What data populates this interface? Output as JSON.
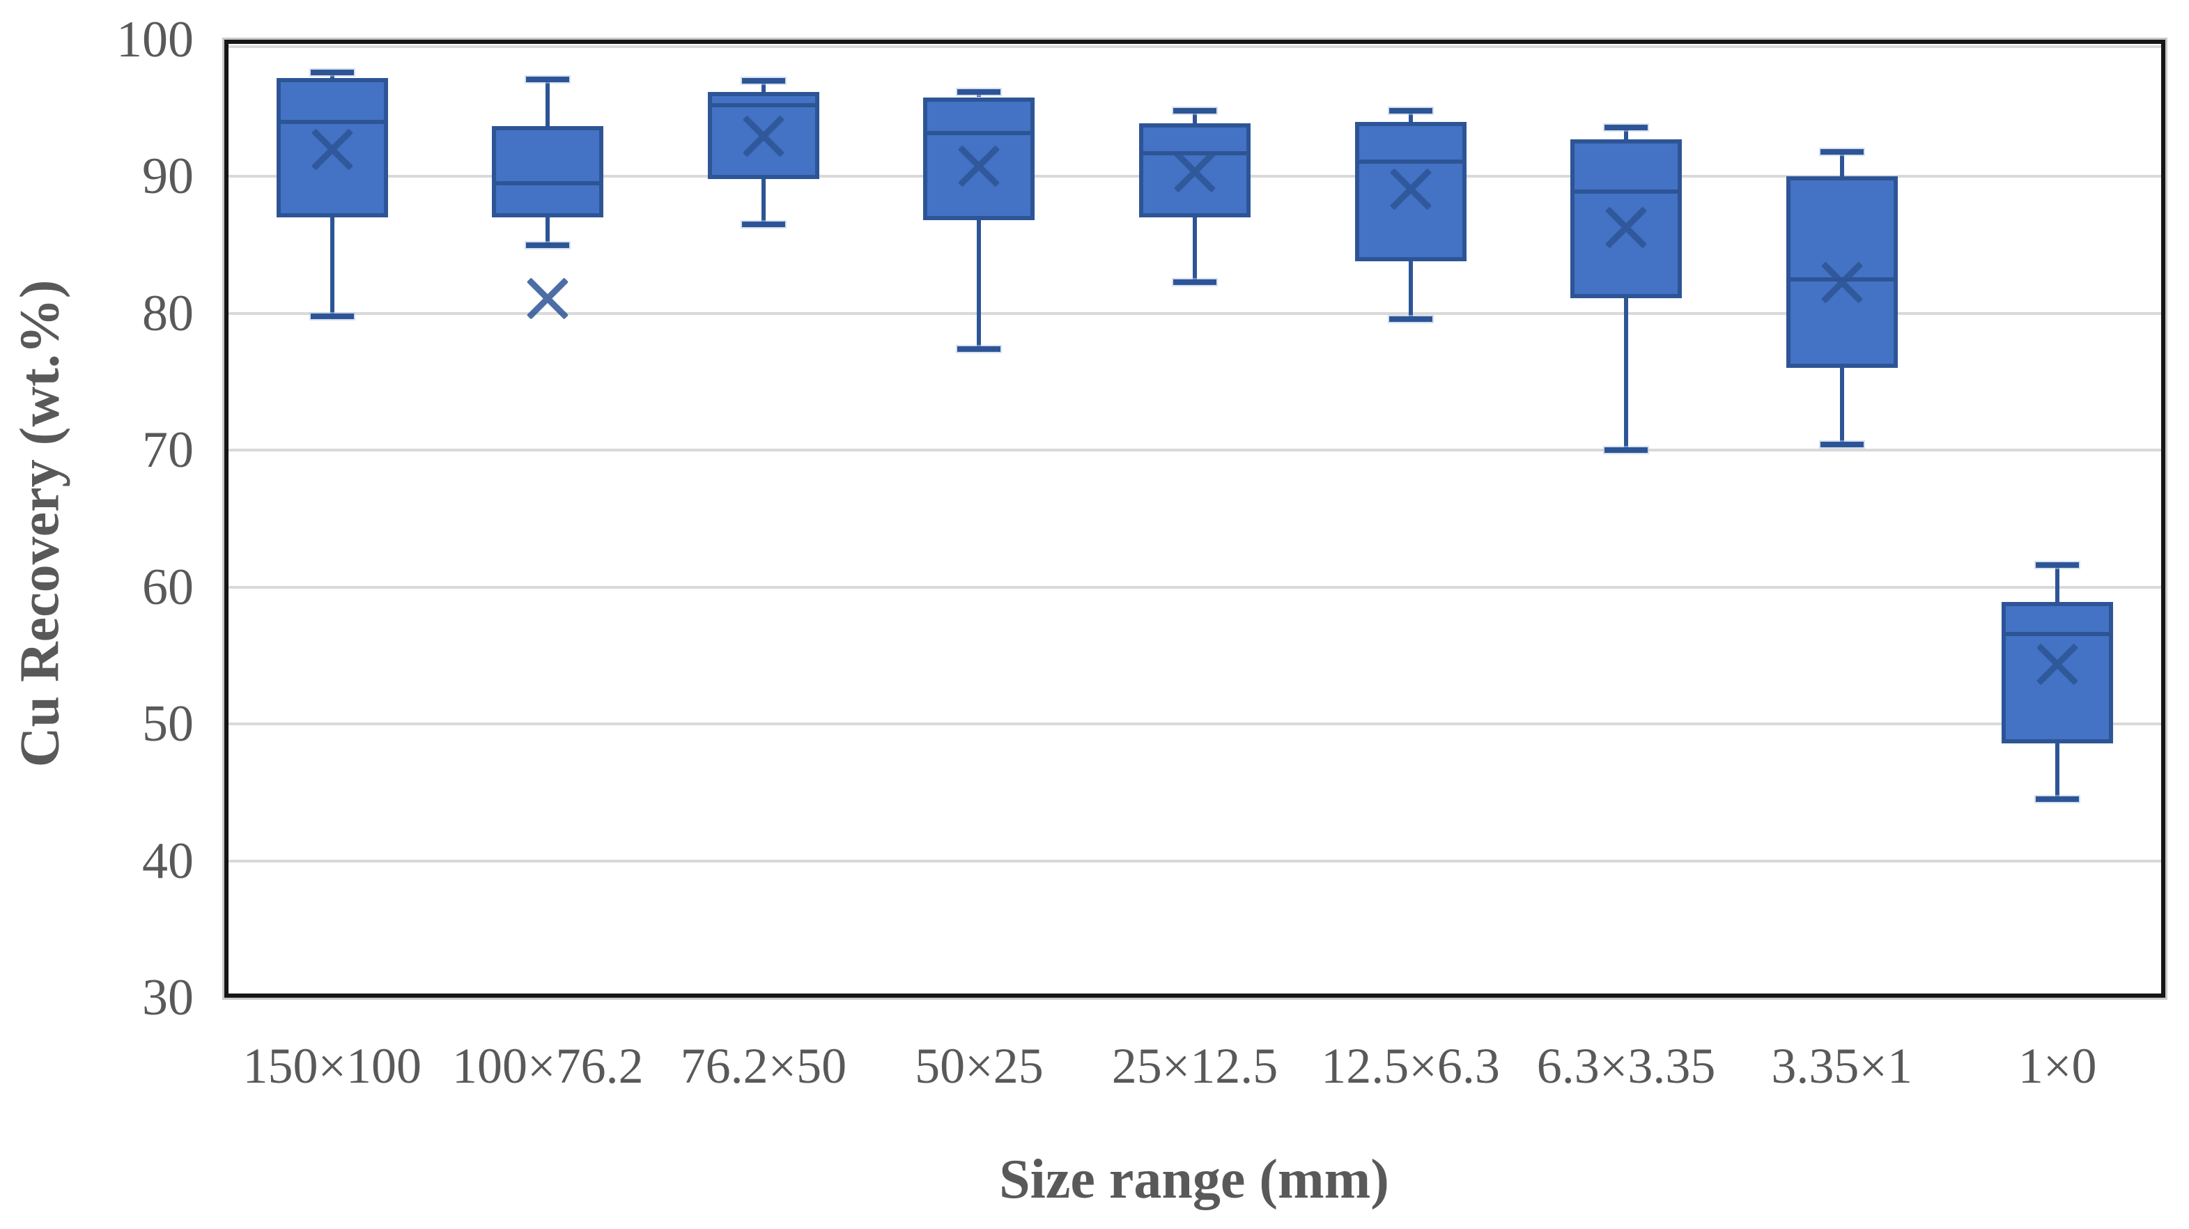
{
  "chart_data": {
    "type": "boxplot",
    "title": "",
    "xlabel": "Size range (mm)",
    "ylabel": "Cu Recovery (wt.%)",
    "ylim": [
      30,
      100
    ],
    "y_ticks": [
      100,
      90,
      80,
      70,
      60,
      50,
      40,
      30
    ],
    "grid": "horizontal gridlines every 10 units, light gray, plot area framed in black",
    "legend": "none",
    "categories": [
      "150×100",
      "100×76.2",
      "76.2×50",
      "50×25",
      "25×12.5",
      "12.5×6.3",
      "6.3×3.35",
      "3.35×1",
      "1×0"
    ],
    "series": [
      {
        "label": "150×100",
        "whisker_low": 79.8,
        "q1": 87.0,
        "median": 94.0,
        "q3": 97.2,
        "whisker_high": 97.6,
        "mean": 92.0
      },
      {
        "label": "100×76.2",
        "whisker_low": 85.0,
        "q1": 87.0,
        "median": 89.5,
        "q3": 93.7,
        "whisker_high": 97.1,
        "mean": 81.1
      },
      {
        "label": "76.2×50",
        "whisker_low": 86.5,
        "q1": 89.8,
        "median": 95.2,
        "q3": 96.2,
        "whisker_high": 97.0,
        "mean": 93.0
      },
      {
        "label": "50×25",
        "whisker_low": 77.4,
        "q1": 86.8,
        "median": 93.2,
        "q3": 95.8,
        "whisker_high": 96.2,
        "mean": 90.8
      },
      {
        "label": "25×12.5",
        "whisker_low": 82.3,
        "q1": 87.0,
        "median": 91.7,
        "q3": 93.9,
        "whisker_high": 94.8,
        "mean": 90.4
      },
      {
        "label": "12.5×6.3",
        "whisker_low": 79.6,
        "q1": 83.8,
        "median": 91.1,
        "q3": 94.0,
        "whisker_high": 94.8,
        "mean": 89.1
      },
      {
        "label": "6.3×3.35",
        "whisker_low": 70.0,
        "q1": 81.1,
        "median": 88.9,
        "q3": 92.7,
        "whisker_high": 93.6,
        "mean": 86.3
      },
      {
        "label": "3.35×1",
        "whisker_low": 70.4,
        "q1": 76.0,
        "median": 82.5,
        "q3": 90.0,
        "whisker_high": 91.8,
        "mean": 82.3
      },
      {
        "label": "1×0",
        "whisker_low": 44.5,
        "q1": 48.6,
        "median": 56.6,
        "q3": 58.9,
        "whisker_high": 61.6,
        "mean": 54.4
      }
    ],
    "colors": {
      "box_fill": "#4472C4",
      "box_border": "#2D5596",
      "whisker": "#2D5596",
      "median_line": "#2D5596",
      "mean_marker": "#2D5596",
      "gridline": "#D9D9D9",
      "axis_text": "#595959",
      "plot_frame": "#161616"
    },
    "notes": "mean markers drawn as × symbols; for category 100×76.2 the × lies at 81.1, below the lower whisker end"
  }
}
